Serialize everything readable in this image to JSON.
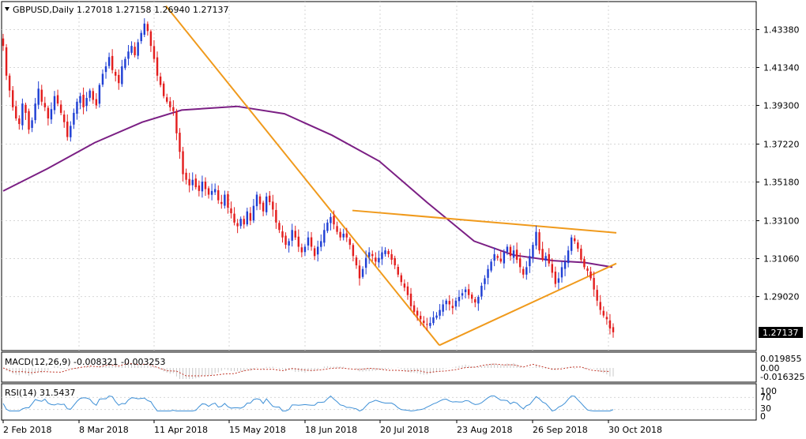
{
  "chart_data": [
    {
      "panel": "price",
      "type": "candlestick",
      "symbol": "GBPUSD",
      "timeframe": "Daily",
      "header_text": "GBPUSD,Daily  1.27018 1.27158 1.26940 1.27137",
      "last_price": "1.27137",
      "y_ticks": [
        "1.43380",
        "1.41340",
        "1.39300",
        "1.37220",
        "1.35180",
        "1.33100",
        "1.31060",
        "1.29020"
      ],
      "ylim": [
        1.262,
        1.448
      ],
      "x_labels": [
        "2 Feb 2018",
        "8 Mar 2018",
        "11 Apr 2018",
        "15 May 2018",
        "18 Jun 2018",
        "20 Jul 2018",
        "23 Aug 2018",
        "26 Sep 2018",
        "30 Oct 2018"
      ],
      "grid": true,
      "closes": [
        1.425,
        1.409,
        1.401,
        1.392,
        1.386,
        1.383,
        1.394,
        1.389,
        1.38,
        1.385,
        1.394,
        1.402,
        1.395,
        1.392,
        1.386,
        1.391,
        1.398,
        1.394,
        1.389,
        1.384,
        1.376,
        1.382,
        1.389,
        1.395,
        1.398,
        1.392,
        1.397,
        1.401,
        1.396,
        1.393,
        1.404,
        1.41,
        1.414,
        1.419,
        1.412,
        1.409,
        1.405,
        1.414,
        1.418,
        1.422,
        1.425,
        1.42,
        1.427,
        1.432,
        1.437,
        1.433,
        1.425,
        1.418,
        1.409,
        1.404,
        1.398,
        1.395,
        1.392,
        1.39,
        1.378,
        1.368,
        1.356,
        1.353,
        1.35,
        1.353,
        1.349,
        1.347,
        1.352,
        1.348,
        1.345,
        1.347,
        1.348,
        1.342,
        1.34,
        1.345,
        1.338,
        1.335,
        1.33,
        1.328,
        1.332,
        1.329,
        1.336,
        1.331,
        1.339,
        1.345,
        1.34,
        1.336,
        1.344,
        1.341,
        1.337,
        1.33,
        1.326,
        1.322,
        1.318,
        1.32,
        1.326,
        1.322,
        1.317,
        1.314,
        1.317,
        1.322,
        1.317,
        1.312,
        1.317,
        1.32,
        1.326,
        1.33,
        1.333,
        1.329,
        1.325,
        1.322,
        1.324,
        1.322,
        1.318,
        1.312,
        1.307,
        1.3,
        1.305,
        1.311,
        1.314,
        1.312,
        1.309,
        1.311,
        1.314,
        1.315,
        1.313,
        1.31,
        1.307,
        1.302,
        1.298,
        1.295,
        1.291,
        1.285,
        1.282,
        1.28,
        1.278,
        1.276,
        1.275,
        1.276,
        1.279,
        1.28,
        1.283,
        1.286,
        1.288,
        1.286,
        1.284,
        1.288,
        1.29,
        1.292,
        1.294,
        1.291,
        1.289,
        1.287,
        1.29,
        1.296,
        1.3,
        1.305,
        1.309,
        1.313,
        1.311,
        1.309,
        1.314,
        1.317,
        1.312,
        1.315,
        1.31,
        1.306,
        1.302,
        1.306,
        1.312,
        1.318,
        1.325,
        1.315,
        1.31,
        1.312,
        1.308,
        1.303,
        1.297,
        1.3,
        1.306,
        1.309,
        1.315,
        1.322,
        1.32,
        1.316,
        1.31,
        1.306,
        1.304,
        1.3,
        1.294,
        1.288,
        1.283,
        1.28,
        1.278,
        1.273,
        1.271
      ]
    },
    {
      "panel": "macd",
      "type": "histogram",
      "label": "MACD(12,26,9) -0.008321 -0.003253",
      "y_ticks": [
        "0.019855",
        "0.00",
        "-0.016325"
      ]
    },
    {
      "panel": "rsi",
      "type": "line",
      "label": "RSI(14) 31.5437",
      "y_ticks": [
        "100",
        "70",
        "30",
        "0"
      ]
    }
  ],
  "colors": {
    "bull": "#1f3fd4",
    "bear": "#e31e1e",
    "moving_average": "#7b1f84",
    "trendlines": "#f09a1c",
    "rsi_line": "#3d8fd6",
    "macd_signal": "#c0392b",
    "grid": "#d6d6d6"
  }
}
